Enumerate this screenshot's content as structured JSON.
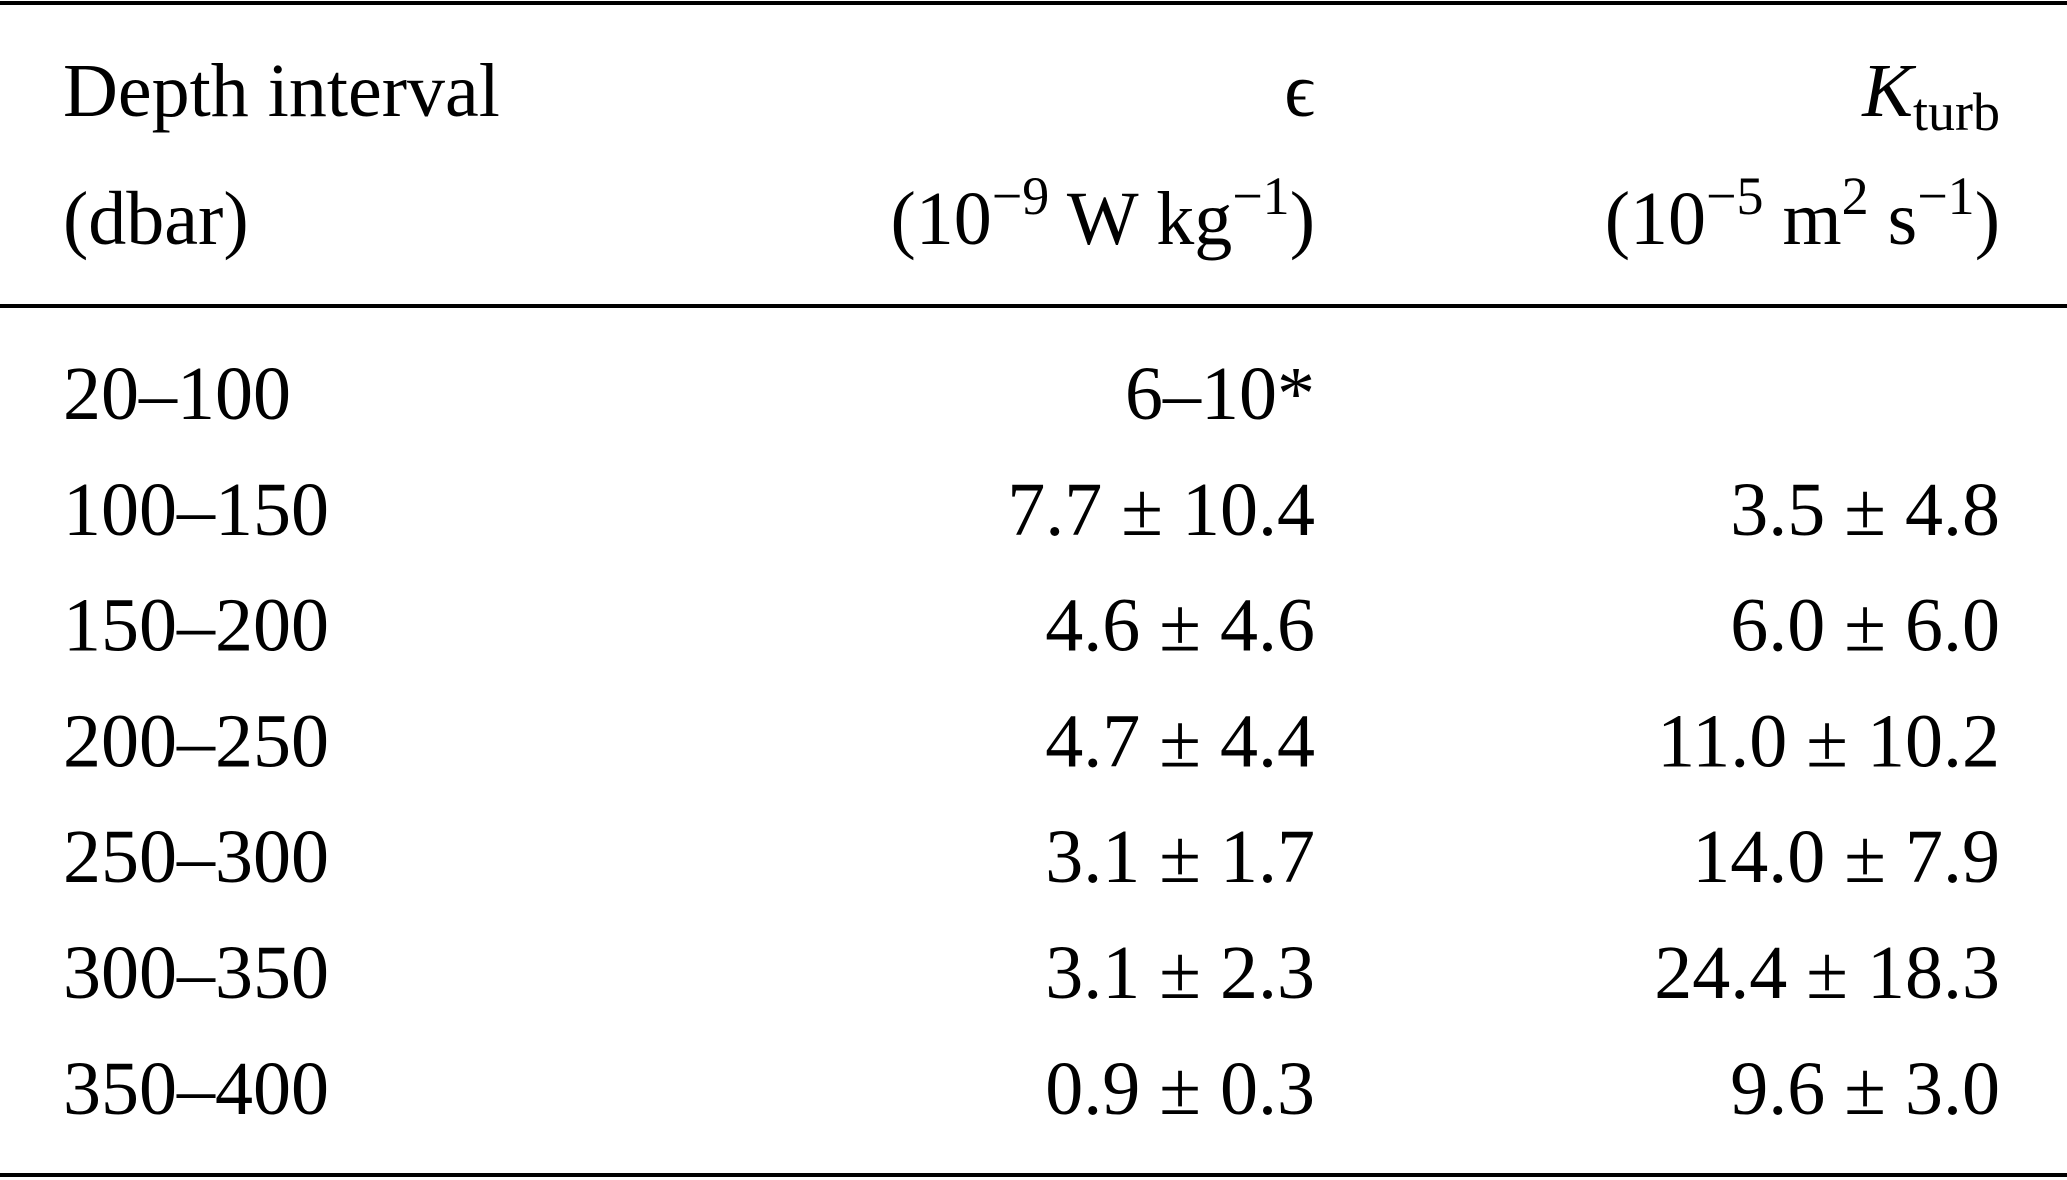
{
  "table": {
    "header": [
      {
        "label": [
          {
            "t": "Depth interval"
          }
        ],
        "unit": [
          {
            "t": "(dbar)"
          }
        ]
      },
      {
        "label": [
          {
            "t": "ϵ"
          }
        ],
        "unit": [
          {
            "t": "(10"
          },
          {
            "sup": "−9"
          },
          {
            "t": " W kg"
          },
          {
            "sup": "−1"
          },
          {
            "t": ")"
          }
        ]
      },
      {
        "label": [
          {
            "t": "K",
            "style": "italic"
          },
          {
            "sub": "turb"
          }
        ],
        "unit": [
          {
            "t": "(10"
          },
          {
            "sup": "−5"
          },
          {
            "t": " m"
          },
          {
            "sup": "2"
          },
          {
            "t": " s"
          },
          {
            "sup": "−1"
          },
          {
            "t": ")"
          }
        ]
      }
    ],
    "rows": [
      [
        "20–100",
        "6–10*",
        null
      ],
      [
        "100–150",
        "7.7 ± 10.4",
        "3.5 ± 4.8"
      ],
      [
        "150–200",
        "4.6 ± 4.6",
        "6.0 ± 6.0"
      ],
      [
        "200–250",
        "4.7 ± 4.4",
        "11.0 ± 10.2"
      ],
      [
        "250–300",
        "3.1 ± 1.7",
        "14.0 ± 7.9"
      ],
      [
        "300–350",
        "3.1 ± 2.3",
        "24.4 ± 18.3"
      ],
      [
        "350–400",
        "0.9 ± 0.3",
        "9.6 ± 3.0"
      ]
    ]
  }
}
